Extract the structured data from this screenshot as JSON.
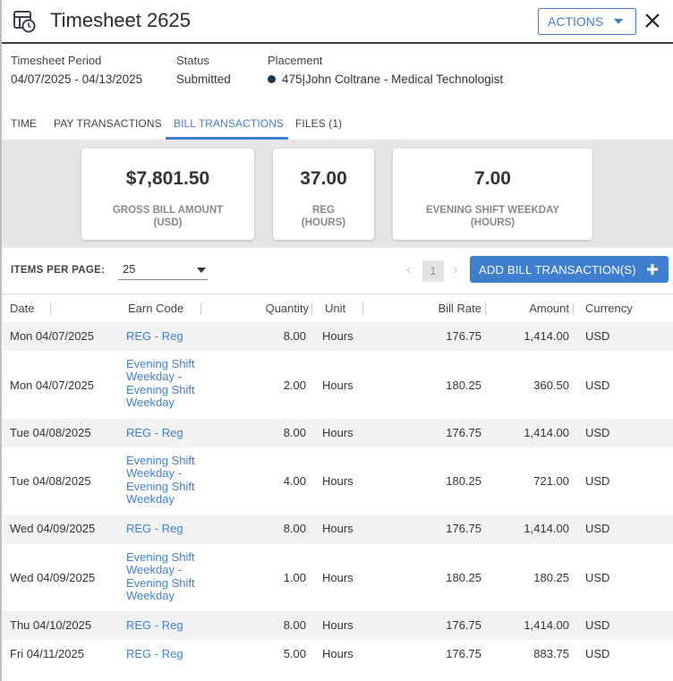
{
  "header": {
    "title": "Timesheet 2625",
    "actions_label": "ACTIONS"
  },
  "info": {
    "period_label": "Timesheet Period",
    "period_value": "04/07/2025 - 04/13/2025",
    "status_label": "Status",
    "status_value": "Submitted",
    "placement_label": "Placement",
    "placement_value": "475|John Coltrane - Medical Technologist"
  },
  "tabs": [
    {
      "label": "TIME"
    },
    {
      "label": "PAY TRANSACTIONS"
    },
    {
      "label": "BILL TRANSACTIONS"
    },
    {
      "label": "FILES (1)"
    }
  ],
  "summary": [
    {
      "value": "$7,801.50",
      "caption_1": "GROSS BILL AMOUNT",
      "caption_2": "(USD)"
    },
    {
      "value": "37.00",
      "caption_1": "REG",
      "caption_2": "(HOURS)"
    },
    {
      "value": "7.00",
      "caption_1": "EVENING SHIFT WEEKDAY",
      "caption_2": "(HOURS)"
    }
  ],
  "toolbar": {
    "items_per_page_label": "ITEMS PER PAGE:",
    "items_per_page_value": "25",
    "prev": "‹",
    "next": "›",
    "current_page": "1",
    "add_label": "ADD BILL TRANSACTION(S)"
  },
  "table": {
    "headers": [
      "Date",
      "Earn Code",
      "Quantity",
      "Unit",
      "Bill Rate",
      "Amount",
      "Currency"
    ],
    "rows": [
      {
        "date": "Mon 04/07/2025",
        "earn_code": "REG - Reg",
        "quantity": "8.00",
        "unit": "Hours",
        "bill_rate": "176.75",
        "amount": "1,414.00",
        "currency": "USD"
      },
      {
        "date": "Mon 04/07/2025",
        "earn_code": "Evening Shift Weekday - Evening Shift Weekday",
        "quantity": "2.00",
        "unit": "Hours",
        "bill_rate": "180.25",
        "amount": "360.50",
        "currency": "USD"
      },
      {
        "date": "Tue 04/08/2025",
        "earn_code": "REG - Reg",
        "quantity": "8.00",
        "unit": "Hours",
        "bill_rate": "176.75",
        "amount": "1,414.00",
        "currency": "USD"
      },
      {
        "date": "Tue 04/08/2025",
        "earn_code": "Evening Shift Weekday - Evening Shift Weekday",
        "quantity": "4.00",
        "unit": "Hours",
        "bill_rate": "180.25",
        "amount": "721.00",
        "currency": "USD"
      },
      {
        "date": "Wed 04/09/2025",
        "earn_code": "REG - Reg",
        "quantity": "8.00",
        "unit": "Hours",
        "bill_rate": "176.75",
        "amount": "1,414.00",
        "currency": "USD"
      },
      {
        "date": "Wed 04/09/2025",
        "earn_code": "Evening Shift Weekday - Evening Shift Weekday",
        "quantity": "1.00",
        "unit": "Hours",
        "bill_rate": "180.25",
        "amount": "180.25",
        "currency": "USD"
      },
      {
        "date": "Thu 04/10/2025",
        "earn_code": "REG - Reg",
        "quantity": "8.00",
        "unit": "Hours",
        "bill_rate": "176.75",
        "amount": "1,414.00",
        "currency": "USD"
      },
      {
        "date": "Fri 04/11/2025",
        "earn_code": "REG - Reg",
        "quantity": "5.00",
        "unit": "Hours",
        "bill_rate": "176.75",
        "amount": "883.75",
        "currency": "USD"
      }
    ]
  }
}
